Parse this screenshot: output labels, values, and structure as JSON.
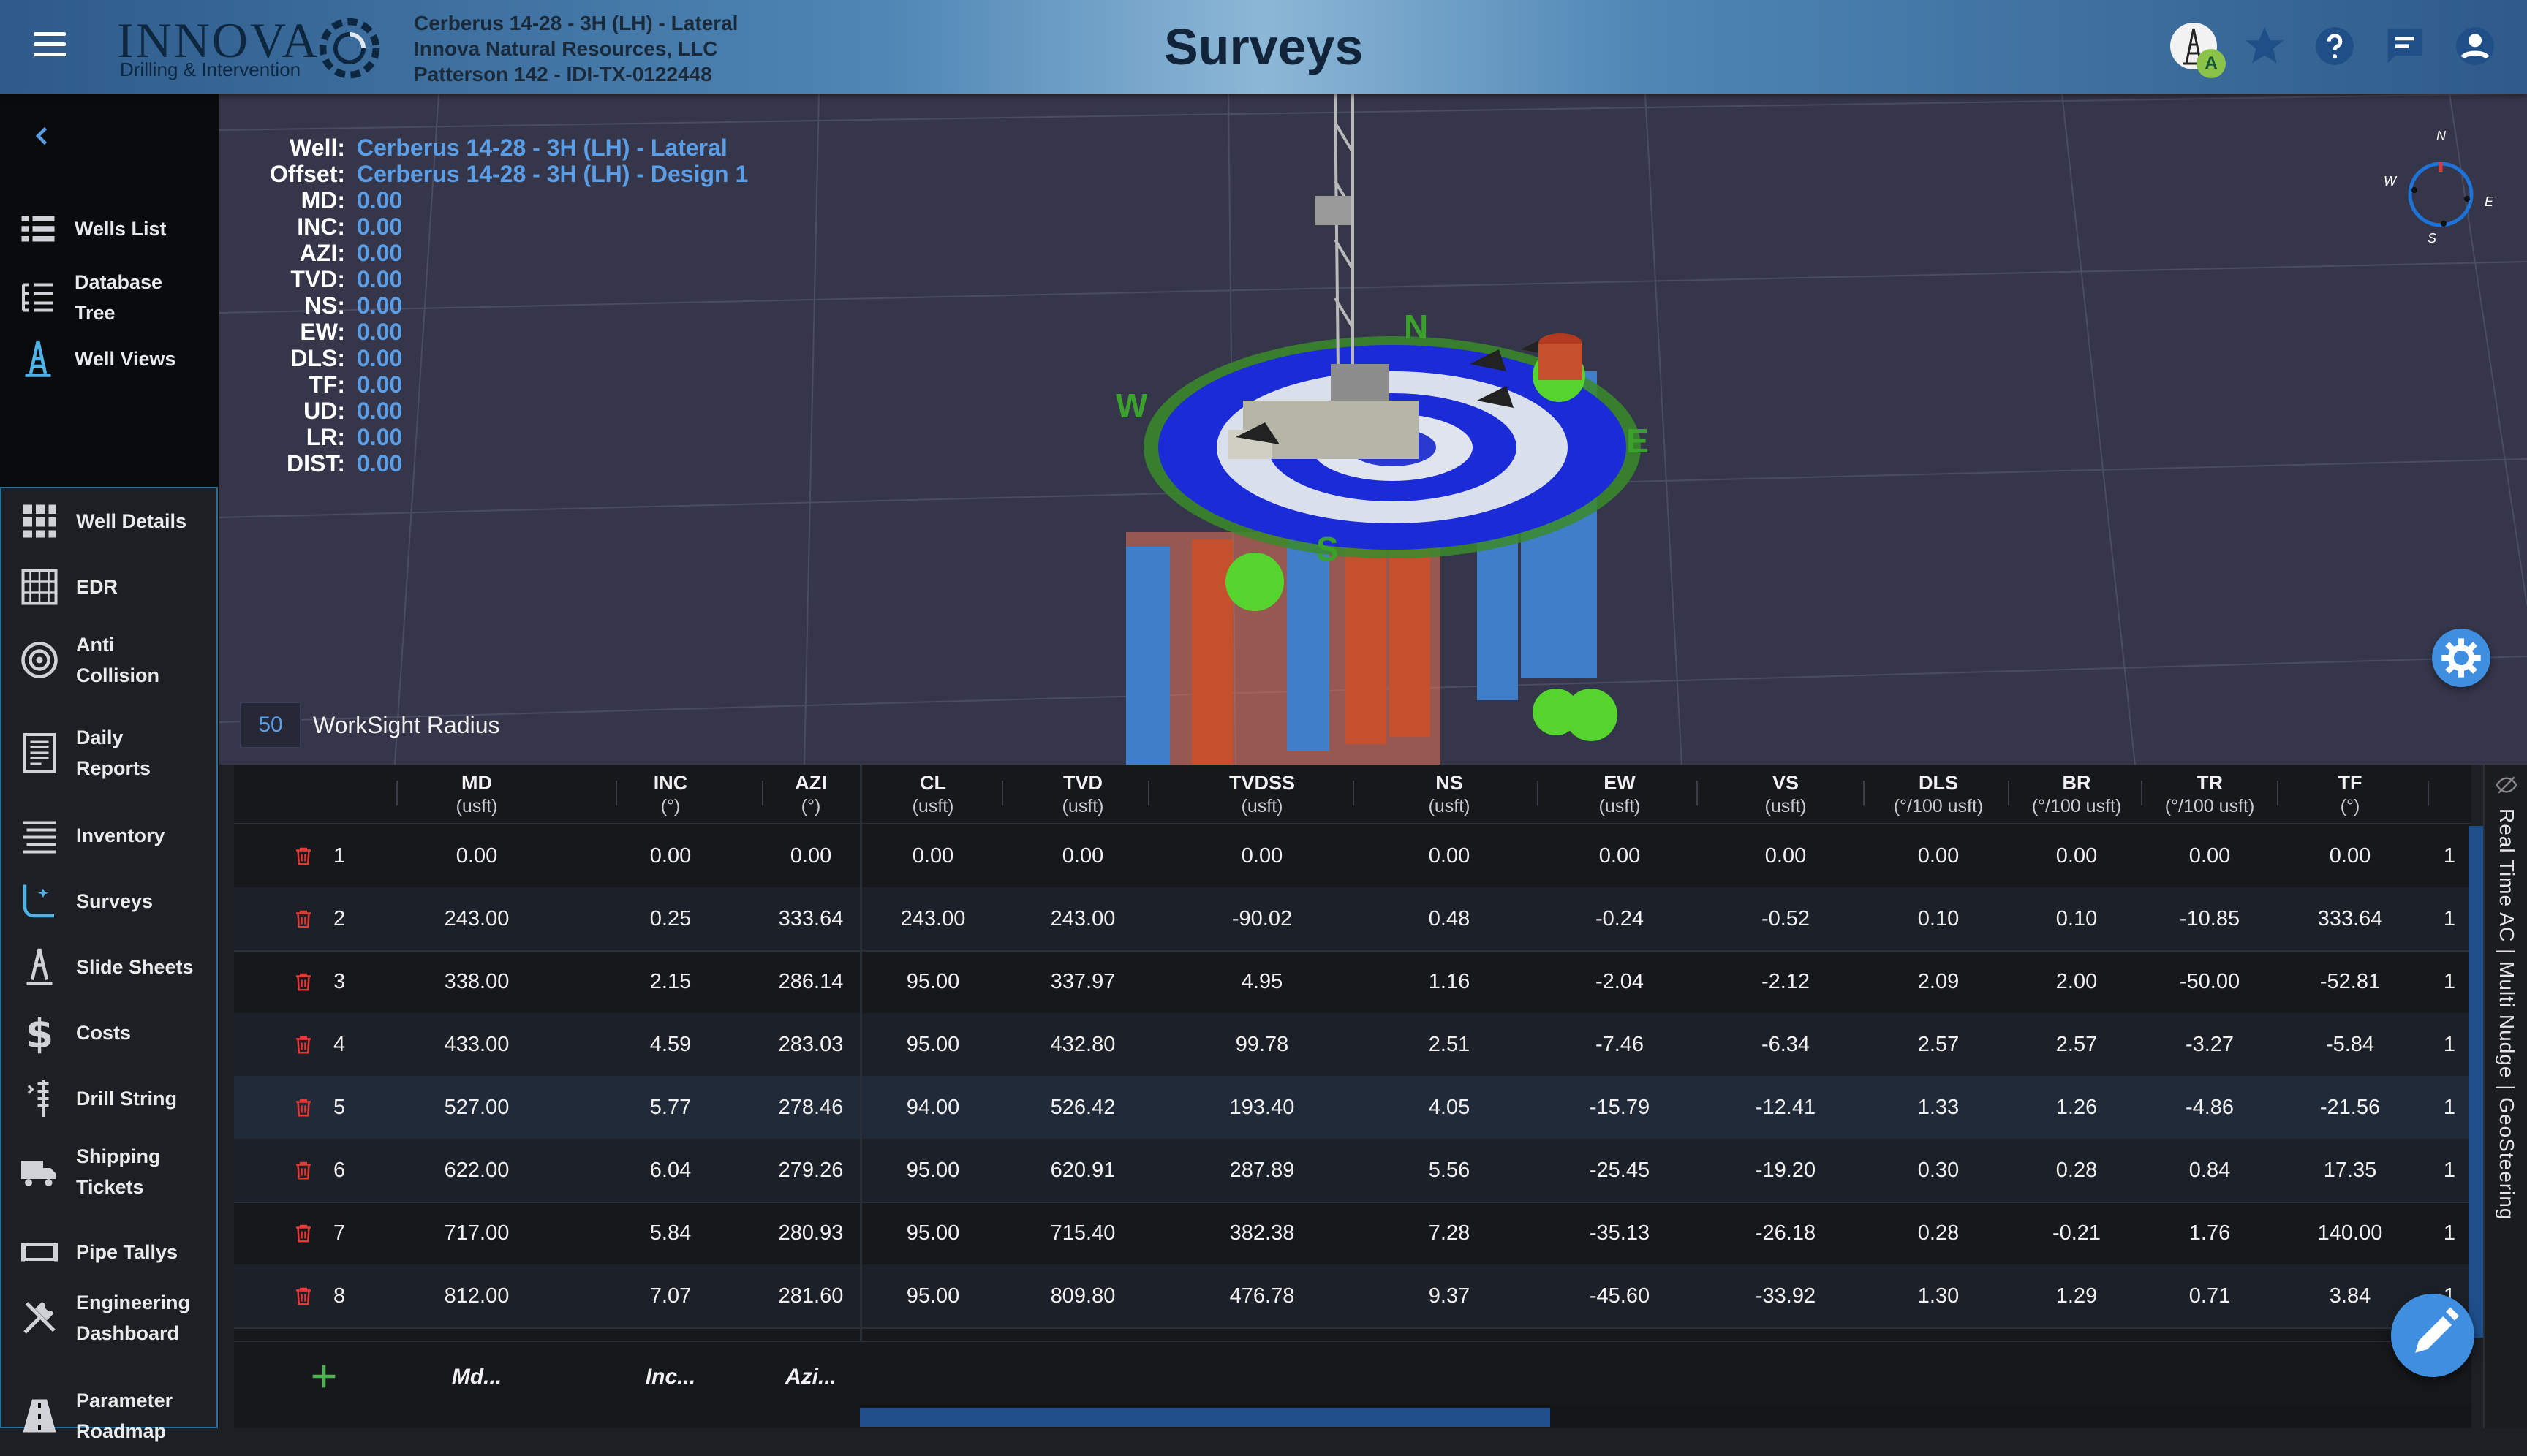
{
  "header": {
    "logo_text": "INNOVA",
    "logo_subtitle": "Drilling & Intervention",
    "well_info": [
      "Cerberus 14-28 - 3H (LH) - Lateral",
      "Innova Natural Resources, LLC",
      "Patterson 142 - IDI-TX-0122448"
    ],
    "page_title": "Surveys",
    "avatar_badge": "A"
  },
  "sidebar": {
    "top_items": [
      {
        "label": "Wells List",
        "icon": "list-icon"
      },
      {
        "label": "Database Tree",
        "icon": "tree-icon"
      },
      {
        "label": "Well Views",
        "icon": "rig-icon"
      }
    ],
    "group_items": [
      {
        "label": "Well Details",
        "icon": "grid-icon"
      },
      {
        "label": "EDR",
        "icon": "edr-icon"
      },
      {
        "label": "Anti Collision",
        "icon": "target-icon"
      },
      {
        "label": "Daily Reports",
        "icon": "report-icon"
      },
      {
        "label": "Inventory",
        "icon": "inventory-icon"
      },
      {
        "label": "Surveys",
        "icon": "survey-icon"
      },
      {
        "label": "Slide Sheets",
        "icon": "slide-icon"
      },
      {
        "label": "Costs",
        "icon": "dollar-icon"
      },
      {
        "label": "Drill String",
        "icon": "drill-string-icon"
      },
      {
        "label": "Shipping Tickets",
        "icon": "truck-icon"
      },
      {
        "label": "Pipe Tallys",
        "icon": "pipe-icon"
      },
      {
        "label": "Engineering Dashboard",
        "icon": "tools-icon"
      },
      {
        "label": "Parameter Roadmap",
        "icon": "road-icon"
      }
    ]
  },
  "overlay": {
    "rows": [
      {
        "key": "Well:",
        "value": "Cerberus 14-28 - 3H (LH) - Lateral"
      },
      {
        "key": "Offset:",
        "value": "Cerberus 14-28 - 3H (LH) - Design 1"
      },
      {
        "key": "MD:",
        "value": "0.00"
      },
      {
        "key": "INC:",
        "value": "0.00"
      },
      {
        "key": "AZI:",
        "value": "0.00"
      },
      {
        "key": "TVD:",
        "value": "0.00"
      },
      {
        "key": "NS:",
        "value": "0.00"
      },
      {
        "key": "EW:",
        "value": "0.00"
      },
      {
        "key": "DLS:",
        "value": "0.00"
      },
      {
        "key": "TF:",
        "value": "0.00"
      },
      {
        "key": "UD:",
        "value": "0.00"
      },
      {
        "key": "LR:",
        "value": "0.00"
      },
      {
        "key": "DIST:",
        "value": "0.00"
      }
    ],
    "compass": {
      "n": "N",
      "s": "S",
      "e": "E",
      "w": "W"
    },
    "scene_labels": {
      "n": "N",
      "s": "S",
      "e": "E",
      "w": "W"
    },
    "radius_value": "50",
    "radius_label": "WorkSight Radius"
  },
  "table": {
    "columns": [
      {
        "name": "MD",
        "unit": "(usft)"
      },
      {
        "name": "INC",
        "unit": "(°)"
      },
      {
        "name": "AZI",
        "unit": "(°)"
      },
      {
        "name": "CL",
        "unit": "(usft)"
      },
      {
        "name": "TVD",
        "unit": "(usft)"
      },
      {
        "name": "TVDSS",
        "unit": "(usft)"
      },
      {
        "name": "NS",
        "unit": "(usft)"
      },
      {
        "name": "EW",
        "unit": "(usft)"
      },
      {
        "name": "VS",
        "unit": "(usft)"
      },
      {
        "name": "DLS",
        "unit": "(°/100 usft)"
      },
      {
        "name": "BR",
        "unit": "(°/100 usft)"
      },
      {
        "name": "TR",
        "unit": "(°/100 usft)"
      },
      {
        "name": "TF",
        "unit": "(°)"
      }
    ],
    "rows": [
      {
        "idx": "1",
        "cells": [
          "0.00",
          "0.00",
          "0.00",
          "0.00",
          "0.00",
          "0.00",
          "0.00",
          "0.00",
          "0.00",
          "0.00",
          "0.00",
          "0.00",
          "0.00"
        ],
        "cut": "1"
      },
      {
        "idx": "2",
        "cells": [
          "243.00",
          "0.25",
          "333.64",
          "243.00",
          "243.00",
          "-90.02",
          "0.48",
          "-0.24",
          "-0.52",
          "0.10",
          "0.10",
          "-10.85",
          "333.64"
        ],
        "cut": "1"
      },
      {
        "idx": "3",
        "cells": [
          "338.00",
          "2.15",
          "286.14",
          "95.00",
          "337.97",
          "4.95",
          "1.16",
          "-2.04",
          "-2.12",
          "2.09",
          "2.00",
          "-50.00",
          "-52.81"
        ],
        "cut": "1"
      },
      {
        "idx": "4",
        "cells": [
          "433.00",
          "4.59",
          "283.03",
          "95.00",
          "432.80",
          "99.78",
          "2.51",
          "-7.46",
          "-6.34",
          "2.57",
          "2.57",
          "-3.27",
          "-5.84"
        ],
        "cut": "1"
      },
      {
        "idx": "5",
        "cells": [
          "527.00",
          "5.77",
          "278.46",
          "94.00",
          "526.42",
          "193.40",
          "4.05",
          "-15.79",
          "-12.41",
          "1.33",
          "1.26",
          "-4.86",
          "-21.56"
        ],
        "cut": "1"
      },
      {
        "idx": "6",
        "cells": [
          "622.00",
          "6.04",
          "279.26",
          "95.00",
          "620.91",
          "287.89",
          "5.56",
          "-25.45",
          "-19.20",
          "0.30",
          "0.28",
          "0.84",
          "17.35"
        ],
        "cut": "1"
      },
      {
        "idx": "7",
        "cells": [
          "717.00",
          "5.84",
          "280.93",
          "95.00",
          "715.40",
          "382.38",
          "7.28",
          "-35.13",
          "-26.18",
          "0.28",
          "-0.21",
          "1.76",
          "140.00"
        ],
        "cut": "1"
      },
      {
        "idx": "8",
        "cells": [
          "812.00",
          "7.07",
          "281.60",
          "95.00",
          "809.80",
          "476.78",
          "9.37",
          "-45.60",
          "-33.92",
          "1.30",
          "1.29",
          "0.71",
          "3.84"
        ],
        "cut": "1"
      }
    ],
    "new_row_placeholders": [
      "Md...",
      "Inc...",
      "Azi..."
    ]
  },
  "side_tab": "Real Time AC | Multi Nudge | GeoSteering"
}
